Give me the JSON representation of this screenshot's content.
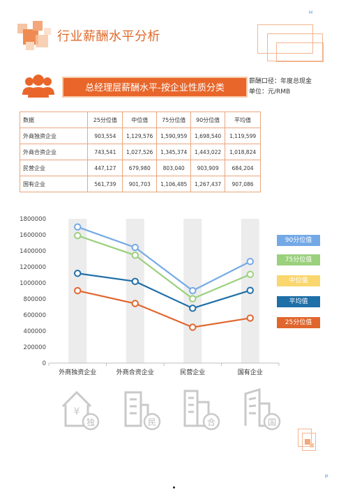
{
  "page": {
    "corner_top": "H",
    "corner_bottom": "P"
  },
  "header": {
    "title": "行业薪酬水平分析"
  },
  "section": {
    "title": "总经理层薪酬水平-按企业性质分类",
    "note_basis": "薪酬口径：年度总现金",
    "note_unit": "单位：元/RMB"
  },
  "table": {
    "headers": [
      "数据",
      "25分位值",
      "中位值",
      "75分位值",
      "90分位值",
      "平均值"
    ],
    "rows": [
      {
        "label": "外商独资企业",
        "values": [
          "903,554",
          "1,129,576",
          "1,590,959",
          "1,698,540",
          "1,119,599"
        ]
      },
      {
        "label": "外商合资企业",
        "values": [
          "743,541",
          "1,027,526",
          "1,345,374",
          "1,443,022",
          "1,018,824"
        ]
      },
      {
        "label": "民营企业",
        "values": [
          "447,127",
          "679,980",
          "803,040",
          "903,909",
          "684,204"
        ]
      },
      {
        "label": "国有企业",
        "values": [
          "561,739",
          "901,703",
          "1,106,485",
          "1,267,437",
          "907,086"
        ]
      }
    ]
  },
  "chart_data": {
    "type": "line",
    "categories": [
      "外商独资企业",
      "外商合资企业",
      "民营企业",
      "国有企业"
    ],
    "ylim": [
      0,
      1800000
    ],
    "yticks": [
      "0",
      "200000",
      "400000",
      "600000",
      "800000",
      "1000000",
      "1200000",
      "1400000",
      "1600000",
      "1800000"
    ],
    "legend_position": "right",
    "series": [
      {
        "name": "90分位值",
        "color": "#74a9e6",
        "values": [
          1698540,
          1443022,
          903909,
          1267437
        ]
      },
      {
        "name": "75分位值",
        "color": "#9bd07d",
        "values": [
          1590959,
          1345374,
          803040,
          1106485
        ]
      },
      {
        "name": "中位值",
        "color": "#f9d66e",
        "values": [
          1129576,
          1027526,
          679980,
          901703
        ]
      },
      {
        "name": "平均值",
        "color": "#1f6fa8",
        "values": [
          1119599,
          1018824,
          684204,
          907086
        ]
      },
      {
        "name": "25分位值",
        "color": "#e0662e",
        "values": [
          903554,
          743541,
          447127,
          561739
        ]
      }
    ],
    "drawn_lines": [
      "90分位值",
      "75分位值",
      "平均值",
      "25分位值"
    ]
  },
  "bottom_icons": [
    {
      "icon": "foreign-owned-building-icon",
      "label": "独"
    },
    {
      "icon": "joint-venture-building-icon",
      "label": "民"
    },
    {
      "icon": "private-building-icon",
      "label": "合"
    },
    {
      "icon": "state-owned-building-icon",
      "label": "国"
    }
  ],
  "bottom_icon_symbol": "¥",
  "colors": {
    "accent": "#e8662a",
    "table_border": "#e8a57e",
    "chart_band": "#ececec"
  }
}
